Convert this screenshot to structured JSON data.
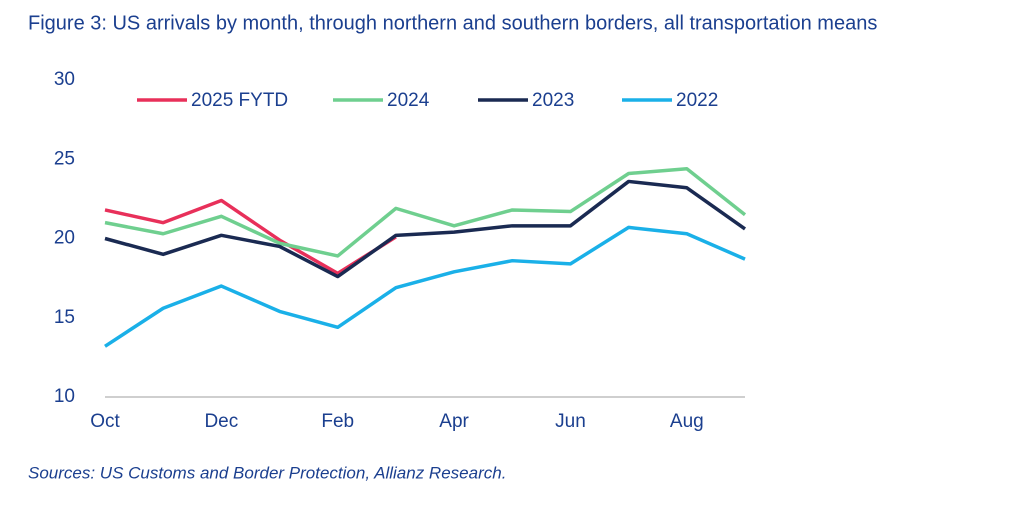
{
  "chart_data": {
    "type": "line",
    "title": "Figure 3: US arrivals by month, through northern and southern borders, all transportation means",
    "source": "Sources: US Customs and Border Protection, Allianz Research.",
    "categories": [
      "Oct",
      null,
      "Dec",
      null,
      "Feb",
      null,
      "Apr",
      null,
      "Jun",
      null,
      "Aug",
      null
    ],
    "series": [
      {
        "name": "2025 FYTD",
        "color": "#e8305a",
        "values": [
          21.8,
          21.0,
          22.4,
          19.9,
          17.8,
          20.1,
          null,
          null,
          null,
          null,
          null,
          null
        ]
      },
      {
        "name": "2024",
        "color": "#6fcf8f",
        "values": [
          21.0,
          20.3,
          21.4,
          19.7,
          18.9,
          21.9,
          20.8,
          21.8,
          21.7,
          24.1,
          24.4,
          21.5
        ]
      },
      {
        "name": "2023",
        "color": "#1a2a52",
        "values": [
          20.0,
          19.0,
          20.2,
          19.5,
          17.6,
          20.2,
          20.4,
          20.8,
          20.8,
          23.6,
          23.2,
          20.6
        ]
      },
      {
        "name": "2022",
        "color": "#1ab0e8",
        "values": [
          13.2,
          15.6,
          17.0,
          15.4,
          14.4,
          16.9,
          17.9,
          18.6,
          18.4,
          20.7,
          20.3,
          18.7
        ]
      }
    ],
    "ylim": [
      10,
      30
    ],
    "yticks": [
      10,
      15,
      20,
      25,
      30
    ],
    "grid": false,
    "legend": "top"
  }
}
